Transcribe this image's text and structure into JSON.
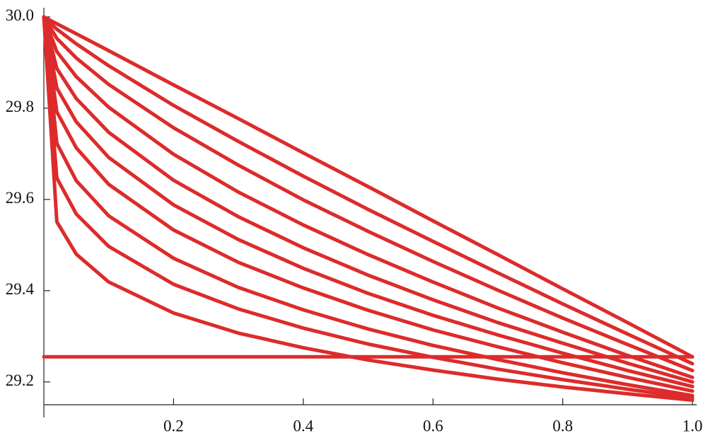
{
  "chart_data": {
    "type": "line",
    "x": [
      0,
      0.02,
      0.05,
      0.1,
      0.2,
      0.3,
      0.4,
      0.5,
      0.6,
      0.7,
      0.8,
      0.9,
      1
    ],
    "series": [
      {
        "color": "#dd2b2b",
        "values": [
          30,
          29.985,
          29.963,
          29.926,
          29.851,
          29.777,
          29.702,
          29.628,
          29.553,
          29.479,
          29.404,
          29.33,
          29.255
        ]
      },
      {
        "color": "#dd2b2b",
        "values": [
          30,
          29.973,
          29.941,
          29.893,
          29.806,
          29.727,
          29.651,
          29.578,
          29.508,
          29.439,
          29.371,
          29.305,
          29.24
        ]
      },
      {
        "color": "#dd2b2b",
        "values": [
          30,
          29.953,
          29.91,
          29.852,
          29.757,
          29.675,
          29.599,
          29.53,
          29.464,
          29.401,
          29.34,
          29.282,
          29.225
        ]
      },
      {
        "color": "#dd2b2b",
        "values": [
          30,
          29.924,
          29.869,
          29.802,
          29.699,
          29.616,
          29.544,
          29.479,
          29.419,
          29.362,
          29.309,
          29.258,
          29.21
        ]
      },
      {
        "color": "#dd2b2b",
        "values": [
          30,
          29.887,
          29.821,
          29.747,
          29.642,
          29.562,
          29.494,
          29.434,
          29.38,
          29.33,
          29.285,
          29.241,
          29.2
        ]
      },
      {
        "color": "#dd2b2b",
        "values": [
          30,
          29.844,
          29.77,
          29.692,
          29.588,
          29.512,
          29.449,
          29.394,
          29.346,
          29.303,
          29.263,
          29.225,
          29.19
        ]
      },
      {
        "color": "#dd2b2b",
        "values": [
          30,
          29.792,
          29.713,
          29.633,
          29.533,
          29.462,
          29.406,
          29.357,
          29.314,
          29.277,
          29.242,
          29.21,
          29.18
        ]
      },
      {
        "color": "#dd2b2b",
        "values": [
          30,
          29.723,
          29.641,
          29.564,
          29.471,
          29.407,
          29.358,
          29.316,
          29.28,
          29.249,
          29.22,
          29.194,
          29.17
        ]
      },
      {
        "color": "#dd2b2b",
        "values": [
          30,
          29.647,
          29.568,
          29.497,
          29.414,
          29.36,
          29.318,
          29.283,
          29.254,
          29.228,
          29.205,
          29.184,
          29.165
        ]
      },
      {
        "color": "#dd2b2b",
        "values": [
          30,
          29.551,
          29.48,
          29.419,
          29.351,
          29.307,
          29.275,
          29.248,
          29.226,
          29.206,
          29.189,
          29.174,
          29.16
        ]
      },
      {
        "color": "#dd2b2b",
        "values": [
          29.255,
          29.255,
          29.255,
          29.255,
          29.255,
          29.255,
          29.255,
          29.255,
          29.255,
          29.255,
          29.255,
          29.255,
          29.255
        ]
      }
    ],
    "xlim": [
      0,
      1
    ],
    "ylim": [
      29.15,
      30.02
    ],
    "xticks": [
      0.2,
      0.4,
      0.6,
      0.8,
      {
        "value": 1,
        "label": "1.0"
      }
    ],
    "yticks": [
      29.2,
      29.4,
      29.6,
      29.8,
      {
        "value": 30,
        "label": "30.0"
      }
    ]
  }
}
